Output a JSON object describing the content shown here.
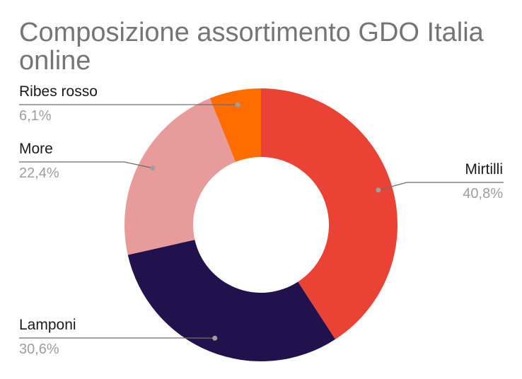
{
  "chart_data": {
    "type": "pie",
    "donut": true,
    "title": "Composizione assortimento GDO Italia online",
    "slices": [
      {
        "label": "Mirtilli",
        "value": 40.8,
        "value_label": "40,8%",
        "color": "#ea4335"
      },
      {
        "label": "Lamponi",
        "value": 30.6,
        "value_label": "30,6%",
        "color": "#21124d"
      },
      {
        "label": "More",
        "value": 22.4,
        "value_label": "22,4%",
        "color": "#e89b9b"
      },
      {
        "label": "Ribes rosso",
        "value": 6.1,
        "value_label": "6,1%",
        "color": "#ff6d01"
      }
    ],
    "legend": "none",
    "label_style": "callout"
  }
}
